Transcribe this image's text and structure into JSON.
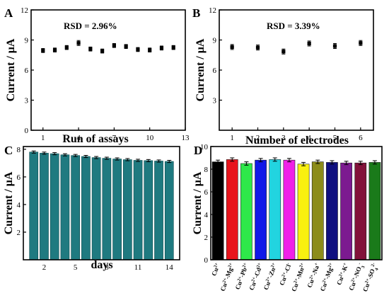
{
  "chart_data": [
    {
      "panel": "A",
      "type": "scatter",
      "xlabel": "Run of assays",
      "ylabel": "Current / μA",
      "xlim": [
        0,
        13
      ],
      "ylim": [
        0,
        12
      ],
      "xticks": [
        1,
        4,
        7,
        10,
        13
      ],
      "yticks": [
        0,
        3,
        6,
        9,
        12
      ],
      "annotation": "RSD = 2.96%",
      "x": [
        1,
        2,
        3,
        4,
        5,
        6,
        7,
        8,
        9,
        10,
        11,
        12
      ],
      "values": [
        7.95,
        8.0,
        8.25,
        8.7,
        8.1,
        7.9,
        8.45,
        8.35,
        8.05,
        8.0,
        8.2,
        8.25
      ],
      "errors": [
        0.2,
        0.2,
        0.2,
        0.25,
        0.2,
        0.2,
        0.2,
        0.2,
        0.2,
        0.2,
        0.2,
        0.2
      ]
    },
    {
      "panel": "B",
      "type": "scatter",
      "xlabel": "Number of electrodes",
      "ylabel": "Current / μA",
      "xlim": [
        0.5,
        6.5
      ],
      "ylim": [
        0,
        12
      ],
      "xticks": [
        1,
        2,
        3,
        4,
        5,
        6
      ],
      "yticks": [
        3,
        6,
        9,
        12
      ],
      "annotation": "RSD = 3.39%",
      "x": [
        1,
        2,
        3,
        4,
        5,
        6
      ],
      "values": [
        8.3,
        8.25,
        7.85,
        8.65,
        8.4,
        8.7
      ],
      "errors": [
        0.25,
        0.25,
        0.25,
        0.25,
        0.25,
        0.25
      ]
    },
    {
      "panel": "C",
      "type": "bar",
      "xlabel": "days",
      "ylabel": "Current / μA",
      "xlim": [
        0,
        15
      ],
      "ylim": [
        0,
        8.2
      ],
      "xticks": [
        2,
        5,
        8,
        11,
        14
      ],
      "yticks": [
        2,
        4,
        6,
        8
      ],
      "bar_color": "#1f7a80",
      "x": [
        1,
        2,
        3,
        4,
        5,
        6,
        7,
        8,
        9,
        10,
        11,
        12,
        13,
        14
      ],
      "values": [
        7.8,
        7.72,
        7.68,
        7.6,
        7.55,
        7.48,
        7.4,
        7.35,
        7.3,
        7.25,
        7.2,
        7.18,
        7.15,
        7.12
      ],
      "errors": [
        0.08,
        0.08,
        0.08,
        0.08,
        0.08,
        0.08,
        0.08,
        0.08,
        0.08,
        0.08,
        0.08,
        0.08,
        0.08,
        0.08
      ]
    },
    {
      "panel": "D",
      "type": "bar",
      "xlabel": "",
      "ylabel": "Current / μA",
      "ylim": [
        0,
        10
      ],
      "yticks": [
        0,
        2,
        4,
        6,
        8,
        10
      ],
      "categories": [
        [
          {
            "t": "Cu"
          },
          {
            "t": "2+",
            "s": "sup"
          }
        ],
        [
          {
            "t": "Cu"
          },
          {
            "t": "2+",
            "s": "sup"
          },
          {
            "t": "-Mg"
          },
          {
            "t": "2+",
            "s": "sup"
          }
        ],
        [
          {
            "t": "Cu"
          },
          {
            "t": "2+",
            "s": "sup"
          },
          {
            "t": "-Pb"
          },
          {
            "t": "2+",
            "s": "sup"
          }
        ],
        [
          {
            "t": "Cu"
          },
          {
            "t": "2+",
            "s": "sup"
          },
          {
            "t": "-Cd"
          },
          {
            "t": "2+",
            "s": "sup"
          }
        ],
        [
          {
            "t": "Cu"
          },
          {
            "t": "2+",
            "s": "sup"
          },
          {
            "t": "-Zn"
          },
          {
            "t": "2+",
            "s": "sup"
          }
        ],
        [
          {
            "t": "Cu"
          },
          {
            "t": "2+",
            "s": "sup"
          },
          {
            "t": "-Cl"
          },
          {
            "t": "-",
            "s": "sup"
          }
        ],
        [
          {
            "t": "Cu"
          },
          {
            "t": "2+",
            "s": "sup"
          },
          {
            "t": "-Mn"
          },
          {
            "t": "2+",
            "s": "sup"
          }
        ],
        [
          {
            "t": "Cu"
          },
          {
            "t": "2+",
            "s": "sup"
          },
          {
            "t": "-Na"
          },
          {
            "t": "+",
            "s": "sup"
          }
        ],
        [
          {
            "t": "Cu"
          },
          {
            "t": "2+",
            "s": "sup"
          },
          {
            "t": "-Mg"
          },
          {
            "t": "2+",
            "s": "sup"
          }
        ],
        [
          {
            "t": "Cu"
          },
          {
            "t": "2+",
            "s": "sup"
          },
          {
            "t": "-K"
          },
          {
            "t": "+",
            "s": "sup"
          }
        ],
        [
          {
            "t": "Cu"
          },
          {
            "t": "2+",
            "s": "sup"
          },
          {
            "t": "-NO"
          },
          {
            "t": "3",
            "s": "sub"
          },
          {
            "t": "-",
            "s": "sup"
          }
        ],
        [
          {
            "t": "Cu"
          },
          {
            "t": "2+",
            "s": "sup"
          },
          {
            "t": "-SO"
          },
          {
            "t": "4",
            "s": "sub"
          },
          {
            "t": "2-",
            "s": "sup"
          }
        ]
      ],
      "values": [
        8.65,
        8.85,
        8.5,
        8.8,
        8.85,
        8.8,
        8.45,
        8.65,
        8.6,
        8.55,
        8.55,
        8.6
      ],
      "errors": [
        0.15,
        0.15,
        0.15,
        0.15,
        0.15,
        0.15,
        0.15,
        0.15,
        0.15,
        0.15,
        0.15,
        0.15
      ],
      "colors": [
        "#000000",
        "#e8141c",
        "#2ee84a",
        "#1018e8",
        "#22d4e0",
        "#f020e8",
        "#f8f010",
        "#8c8c1a",
        "#101080",
        "#7c1a90",
        "#82123a",
        "#1a7a1a"
      ]
    }
  ]
}
